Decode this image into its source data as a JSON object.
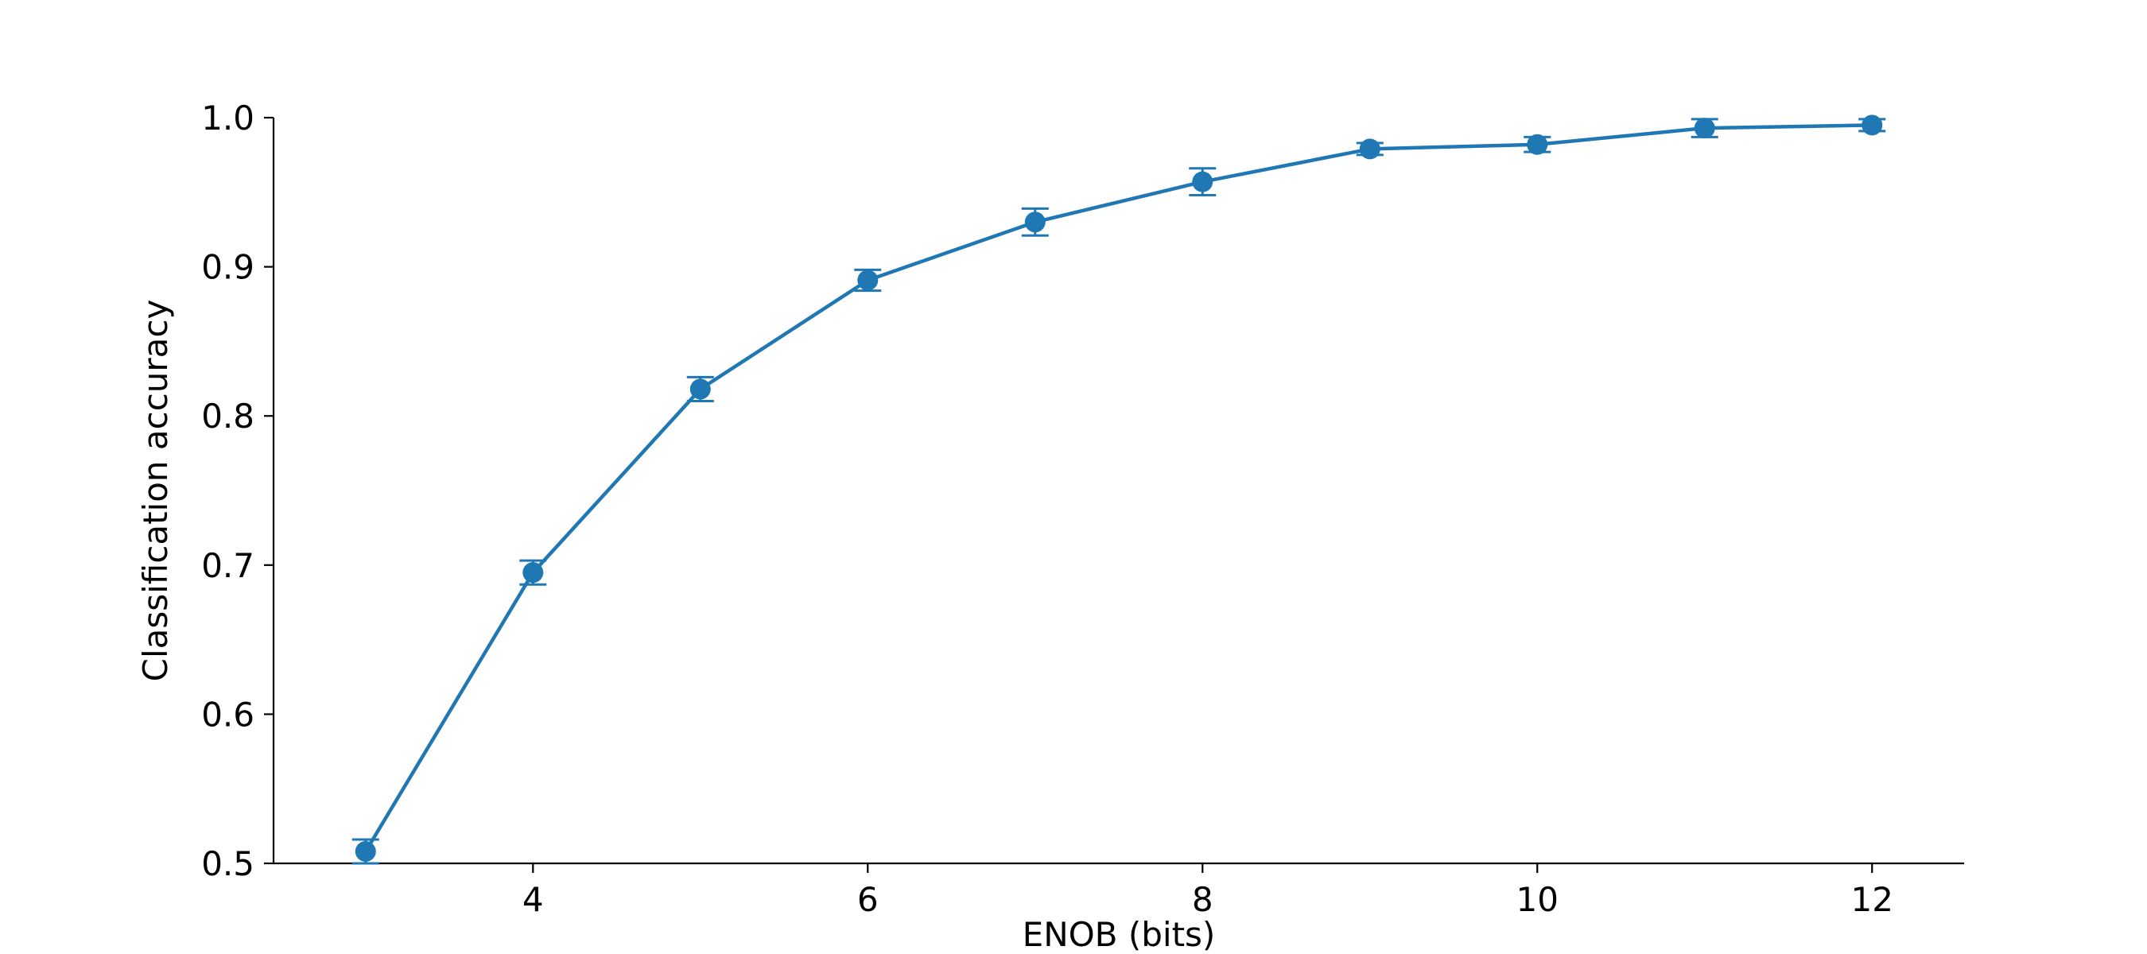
{
  "chart_data": {
    "type": "line",
    "x": [
      3,
      4,
      5,
      6,
      7,
      8,
      9,
      10,
      11,
      12
    ],
    "series": [
      {
        "values": [
          0.508,
          0.695,
          0.818,
          0.891,
          0.93,
          0.957,
          0.979,
          0.982,
          0.993,
          0.995
        ],
        "errors": [
          0.008,
          0.008,
          0.008,
          0.007,
          0.009,
          0.009,
          0.004,
          0.005,
          0.006,
          0.004
        ],
        "color": "#1f77b4"
      }
    ],
    "xlabel": "ENOB (bits)",
    "ylabel": "Classification accuracy",
    "xlim": [
      2.45,
      12.55
    ],
    "ylim": [
      0.5,
      1.0
    ],
    "xticks": [
      4,
      6,
      8,
      10,
      12
    ],
    "xtick_labels": [
      "4",
      "6",
      "8",
      "10",
      "12"
    ],
    "yticks": [
      0.5,
      0.6,
      0.7,
      0.8,
      0.9,
      1.0
    ],
    "ytick_labels": [
      "0.5",
      "0.6",
      "0.7",
      "0.8",
      "0.9",
      "1.0"
    ],
    "grid": false,
    "legend": "none",
    "markers": "circle",
    "error_bars": true
  }
}
